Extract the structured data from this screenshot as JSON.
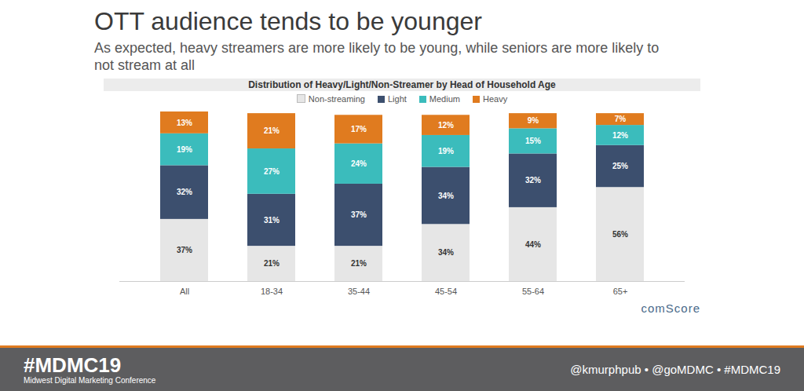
{
  "chart_data": {
    "type": "bar",
    "stacked": true,
    "title": "OTT audience tends to be younger",
    "subtitle": "As expected, heavy streamers are more likely to be young, while seniors are more likely to not stream at all",
    "annotations": [
      "Distribution of Heavy/Light/Non-Streamer by Head of Household Age",
      "comScore",
      "#MDMC19",
      "Midwest Digital Marketing Conference",
      "@kmurphpub • @goMDMC • #MDMC19"
    ],
    "categories": [
      "All",
      "18-34",
      "35-44",
      "45-54",
      "55-64",
      "65+"
    ],
    "series": [
      {
        "name": "Non-streaming",
        "color": "#e6e6e6",
        "values": [
          37,
          21,
          21,
          34,
          44,
          56
        ],
        "value_labels": [
          "37%",
          "21%",
          "21%",
          "34%",
          "44%",
          "56%"
        ]
      },
      {
        "name": "Light",
        "color": "#3c4f6e",
        "values": [
          32,
          31,
          37,
          34,
          32,
          25
        ],
        "value_labels": [
          "32%",
          "31%",
          "37%",
          "34%",
          "32%",
          "25%"
        ]
      },
      {
        "name": "Medium",
        "color": "#3bbcbc",
        "values": [
          19,
          27,
          24,
          19,
          15,
          12
        ],
        "value_labels": [
          "19%",
          "27%",
          "24%",
          "19%",
          "15%",
          "12%"
        ]
      },
      {
        "name": "Heavy",
        "color": "#e07b1f",
        "values": [
          13,
          21,
          17,
          12,
          9,
          7
        ],
        "value_labels": [
          "13%",
          "21%",
          "17%",
          "12%",
          "9%",
          "7%"
        ]
      }
    ],
    "ylim": [
      0,
      101
    ],
    "data_labels": true,
    "tick_labels": "x",
    "legend": "top"
  }
}
